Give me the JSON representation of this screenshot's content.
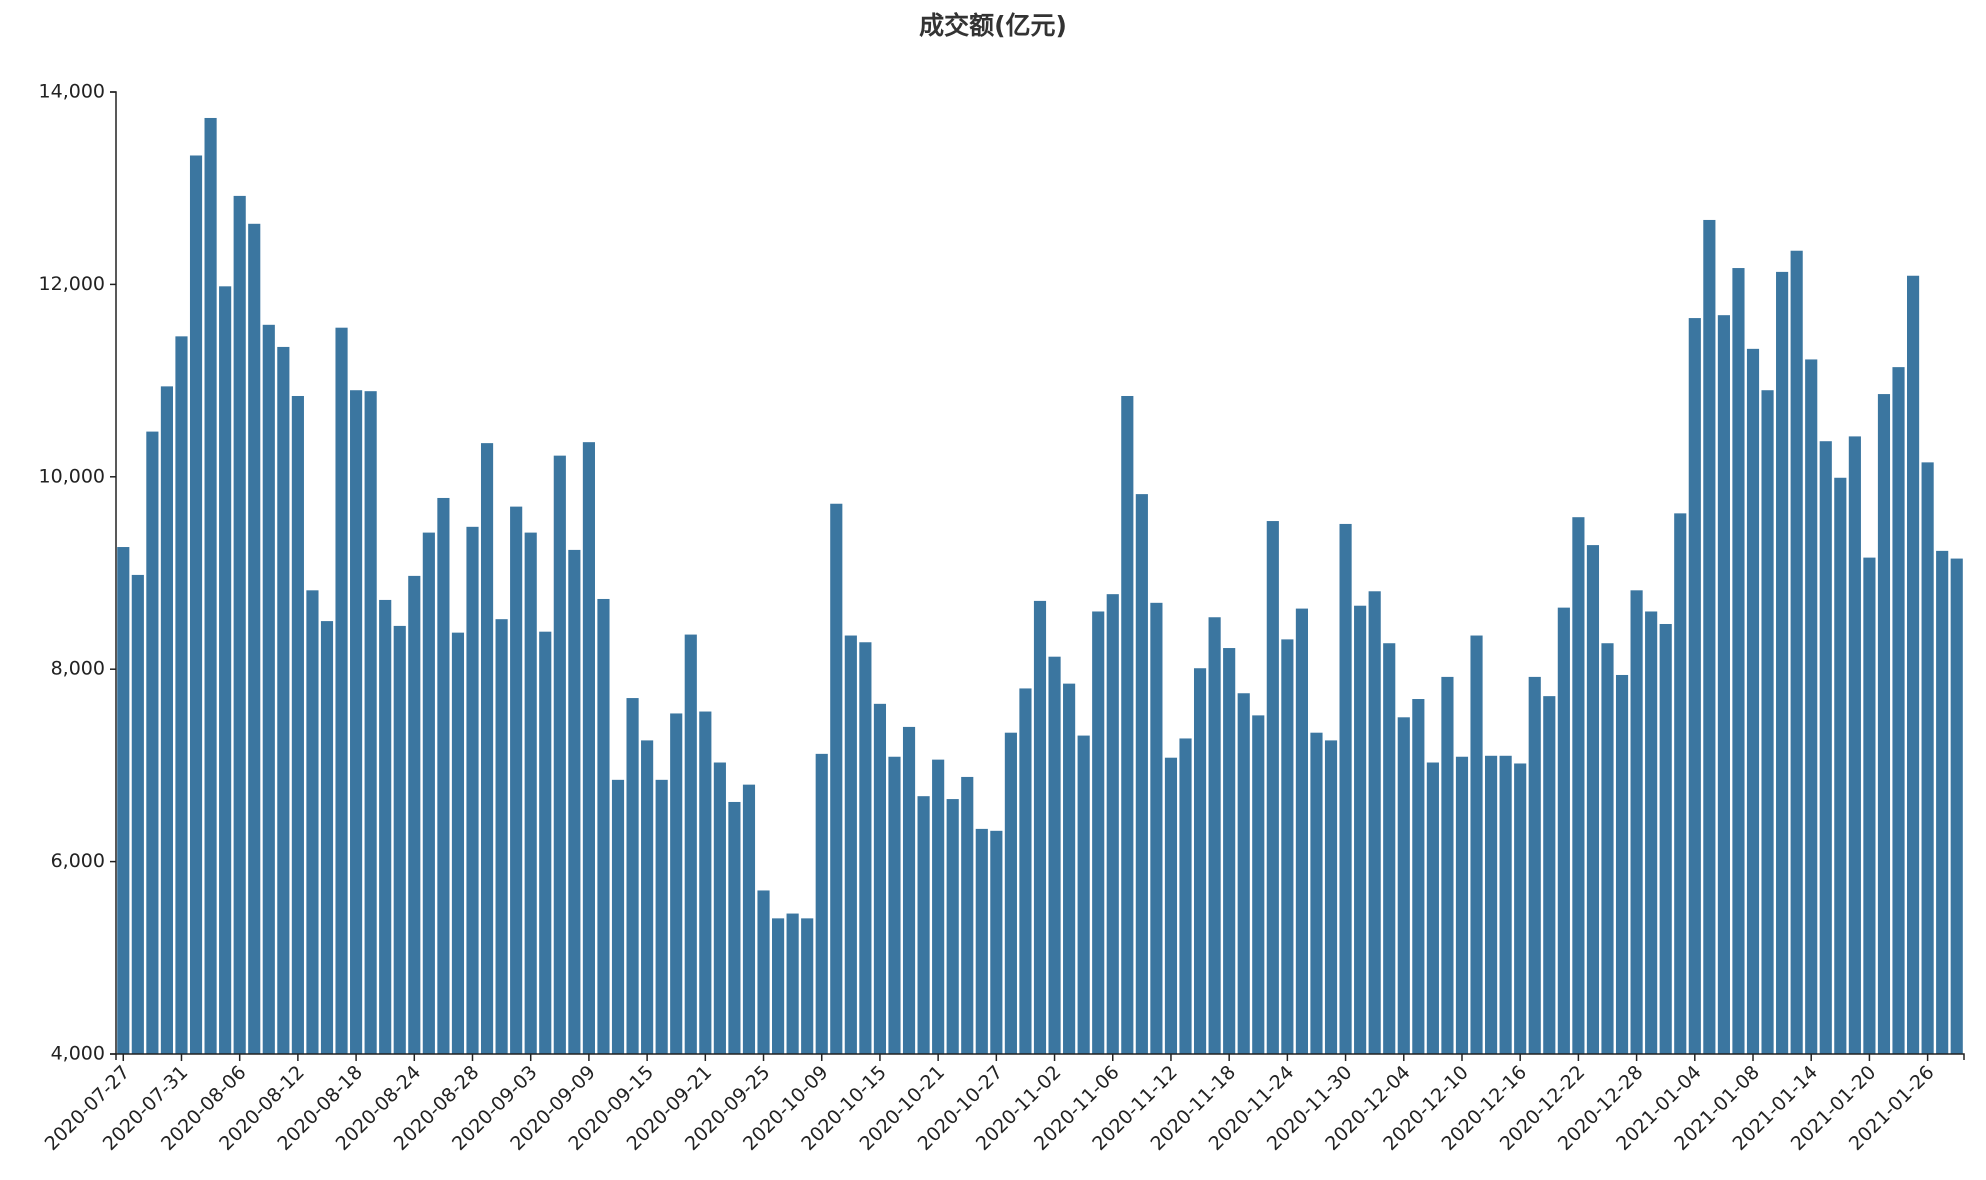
{
  "chart_data": {
    "type": "bar",
    "title": "成交额(亿元)",
    "xlabel": "",
    "ylabel": "",
    "ylim": [
      4000,
      14000
    ],
    "y_ticks": [
      4000,
      6000,
      8000,
      10000,
      12000,
      14000
    ],
    "y_tick_labels": [
      "4,000",
      "6,000",
      "8,000",
      "10,000",
      "12,000",
      "14,000"
    ],
    "x_tick_labels": [
      "2020-07-27",
      "2020-07-31",
      "2020-08-06",
      "2020-08-12",
      "2020-08-18",
      "2020-08-24",
      "2020-08-28",
      "2020-09-03",
      "2020-09-09",
      "2020-09-15",
      "2020-09-21",
      "2020-09-25",
      "2020-10-09",
      "2020-10-15",
      "2020-10-21",
      "2020-10-27",
      "2020-11-02",
      "2020-11-06",
      "2020-11-12",
      "2020-11-18",
      "2020-11-24",
      "2020-11-30",
      "2020-12-04",
      "2020-12-10",
      "2020-12-16",
      "2020-12-22",
      "2020-12-28",
      "2021-01-04",
      "2021-01-08",
      "2021-01-14",
      "2021-01-20",
      "2021-01-26"
    ],
    "tick_every": 4,
    "bar_color": "#3b76a0",
    "grid": false,
    "values": [
      9270,
      8980,
      10470,
      10940,
      11460,
      13340,
      13730,
      11980,
      12920,
      12630,
      11580,
      11350,
      10840,
      8820,
      8500,
      11550,
      10900,
      10890,
      8720,
      8450,
      8970,
      9420,
      9780,
      8380,
      9480,
      10350,
      8520,
      9690,
      9420,
      8390,
      10220,
      9240,
      10360,
      8730,
      6850,
      7700,
      7260,
      6850,
      7540,
      8360,
      7560,
      7030,
      6620,
      6800,
      5700,
      5410,
      5460,
      5410,
      7120,
      9720,
      8350,
      8280,
      7640,
      7090,
      7400,
      6680,
      7060,
      6650,
      6880,
      6340,
      6320,
      7340,
      7800,
      8710,
      8130,
      7850,
      7310,
      8600,
      8780,
      10840,
      9820,
      8690,
      7080,
      7280,
      8010,
      8540,
      8220,
      7750,
      7520,
      9540,
      8310,
      8630,
      7340,
      7260,
      9510,
      8660,
      8810,
      8270,
      7500,
      7690,
      7030,
      7920,
      7090,
      8350,
      7100,
      7100,
      7020,
      7920,
      7720,
      8640,
      9580,
      9290,
      8270,
      7940,
      8820,
      8600,
      8470,
      9620,
      11650,
      12670,
      11680,
      12170,
      11330,
      10900,
      12130,
      12350,
      11220,
      10370,
      9990,
      10420,
      9160,
      10860,
      11140,
      12090,
      10150,
      9230,
      9150
    ]
  }
}
